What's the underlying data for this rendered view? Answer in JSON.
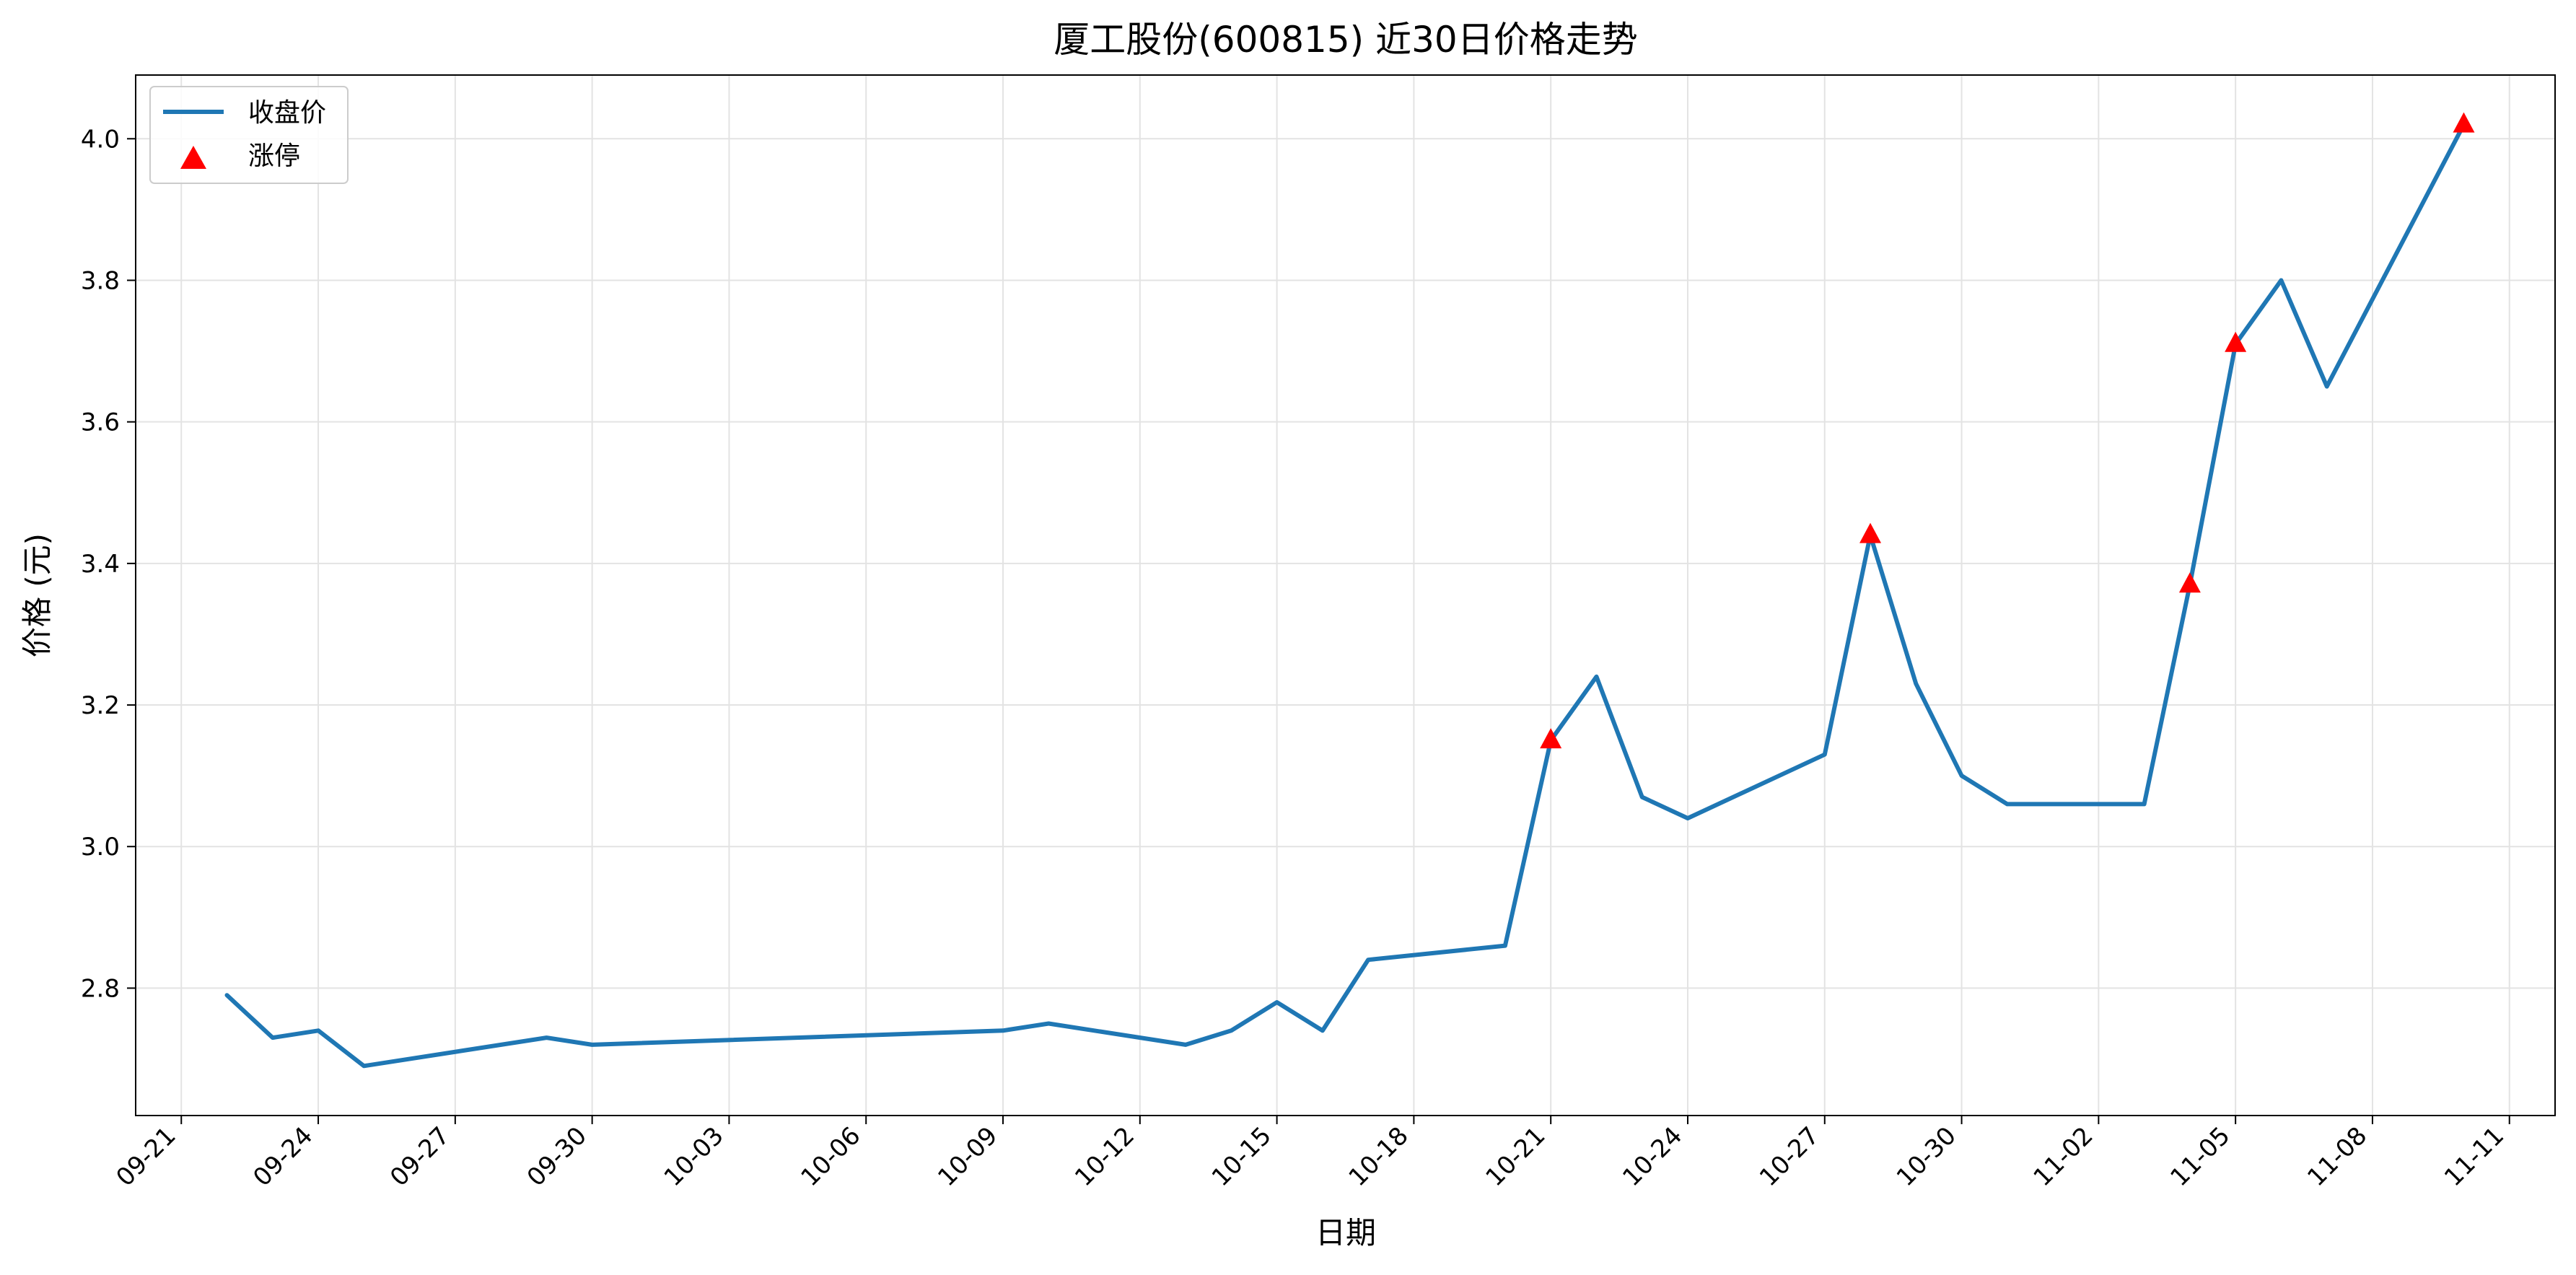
{
  "chart_data": {
    "type": "line",
    "title": "厦工股份(600815) 近30日价格走势",
    "xlabel": "日期",
    "ylabel": "价格 (元)",
    "x_ticks": [
      "09-21",
      "09-24",
      "09-27",
      "09-30",
      "10-03",
      "10-06",
      "10-09",
      "10-12",
      "10-15",
      "10-18",
      "10-21",
      "10-24",
      "10-27",
      "10-30",
      "11-02",
      "11-05",
      "11-08",
      "11-11"
    ],
    "y_ticks": [
      2.8,
      3.0,
      3.2,
      3.4,
      3.6,
      3.8,
      4.0
    ],
    "ylim": [
      2.62,
      4.09
    ],
    "xlim": [
      "09-20",
      "11-12"
    ],
    "grid": true,
    "legend_position": "upper-left",
    "legend": [
      "收盘价",
      "涨停"
    ],
    "colors": {
      "line": "#1f77b4",
      "limit_up": "#ff0000"
    },
    "series": [
      {
        "name": "收盘价",
        "x": [
          "09-22",
          "09-23",
          "09-24",
          "09-25",
          "09-29",
          "09-30",
          "10-09",
          "10-10",
          "10-13",
          "10-14",
          "10-15",
          "10-16",
          "10-17",
          "10-20",
          "10-21",
          "10-22",
          "10-23",
          "10-24",
          "10-27",
          "10-28",
          "10-29",
          "10-30",
          "10-31",
          "11-03",
          "11-04",
          "11-05",
          "11-06",
          "11-07",
          "11-10"
        ],
        "values": [
          2.79,
          2.73,
          2.74,
          2.69,
          2.73,
          2.72,
          2.74,
          2.75,
          2.72,
          2.74,
          2.78,
          2.74,
          2.84,
          2.86,
          3.15,
          3.24,
          3.07,
          3.04,
          3.13,
          3.44,
          3.23,
          3.1,
          3.06,
          3.06,
          3.37,
          3.71,
          3.8,
          3.65,
          4.02
        ]
      },
      {
        "name": "涨停",
        "x": [
          "10-21",
          "10-28",
          "11-04",
          "11-05",
          "11-10"
        ],
        "values": [
          3.15,
          3.44,
          3.37,
          3.71,
          4.02
        ]
      }
    ]
  }
}
